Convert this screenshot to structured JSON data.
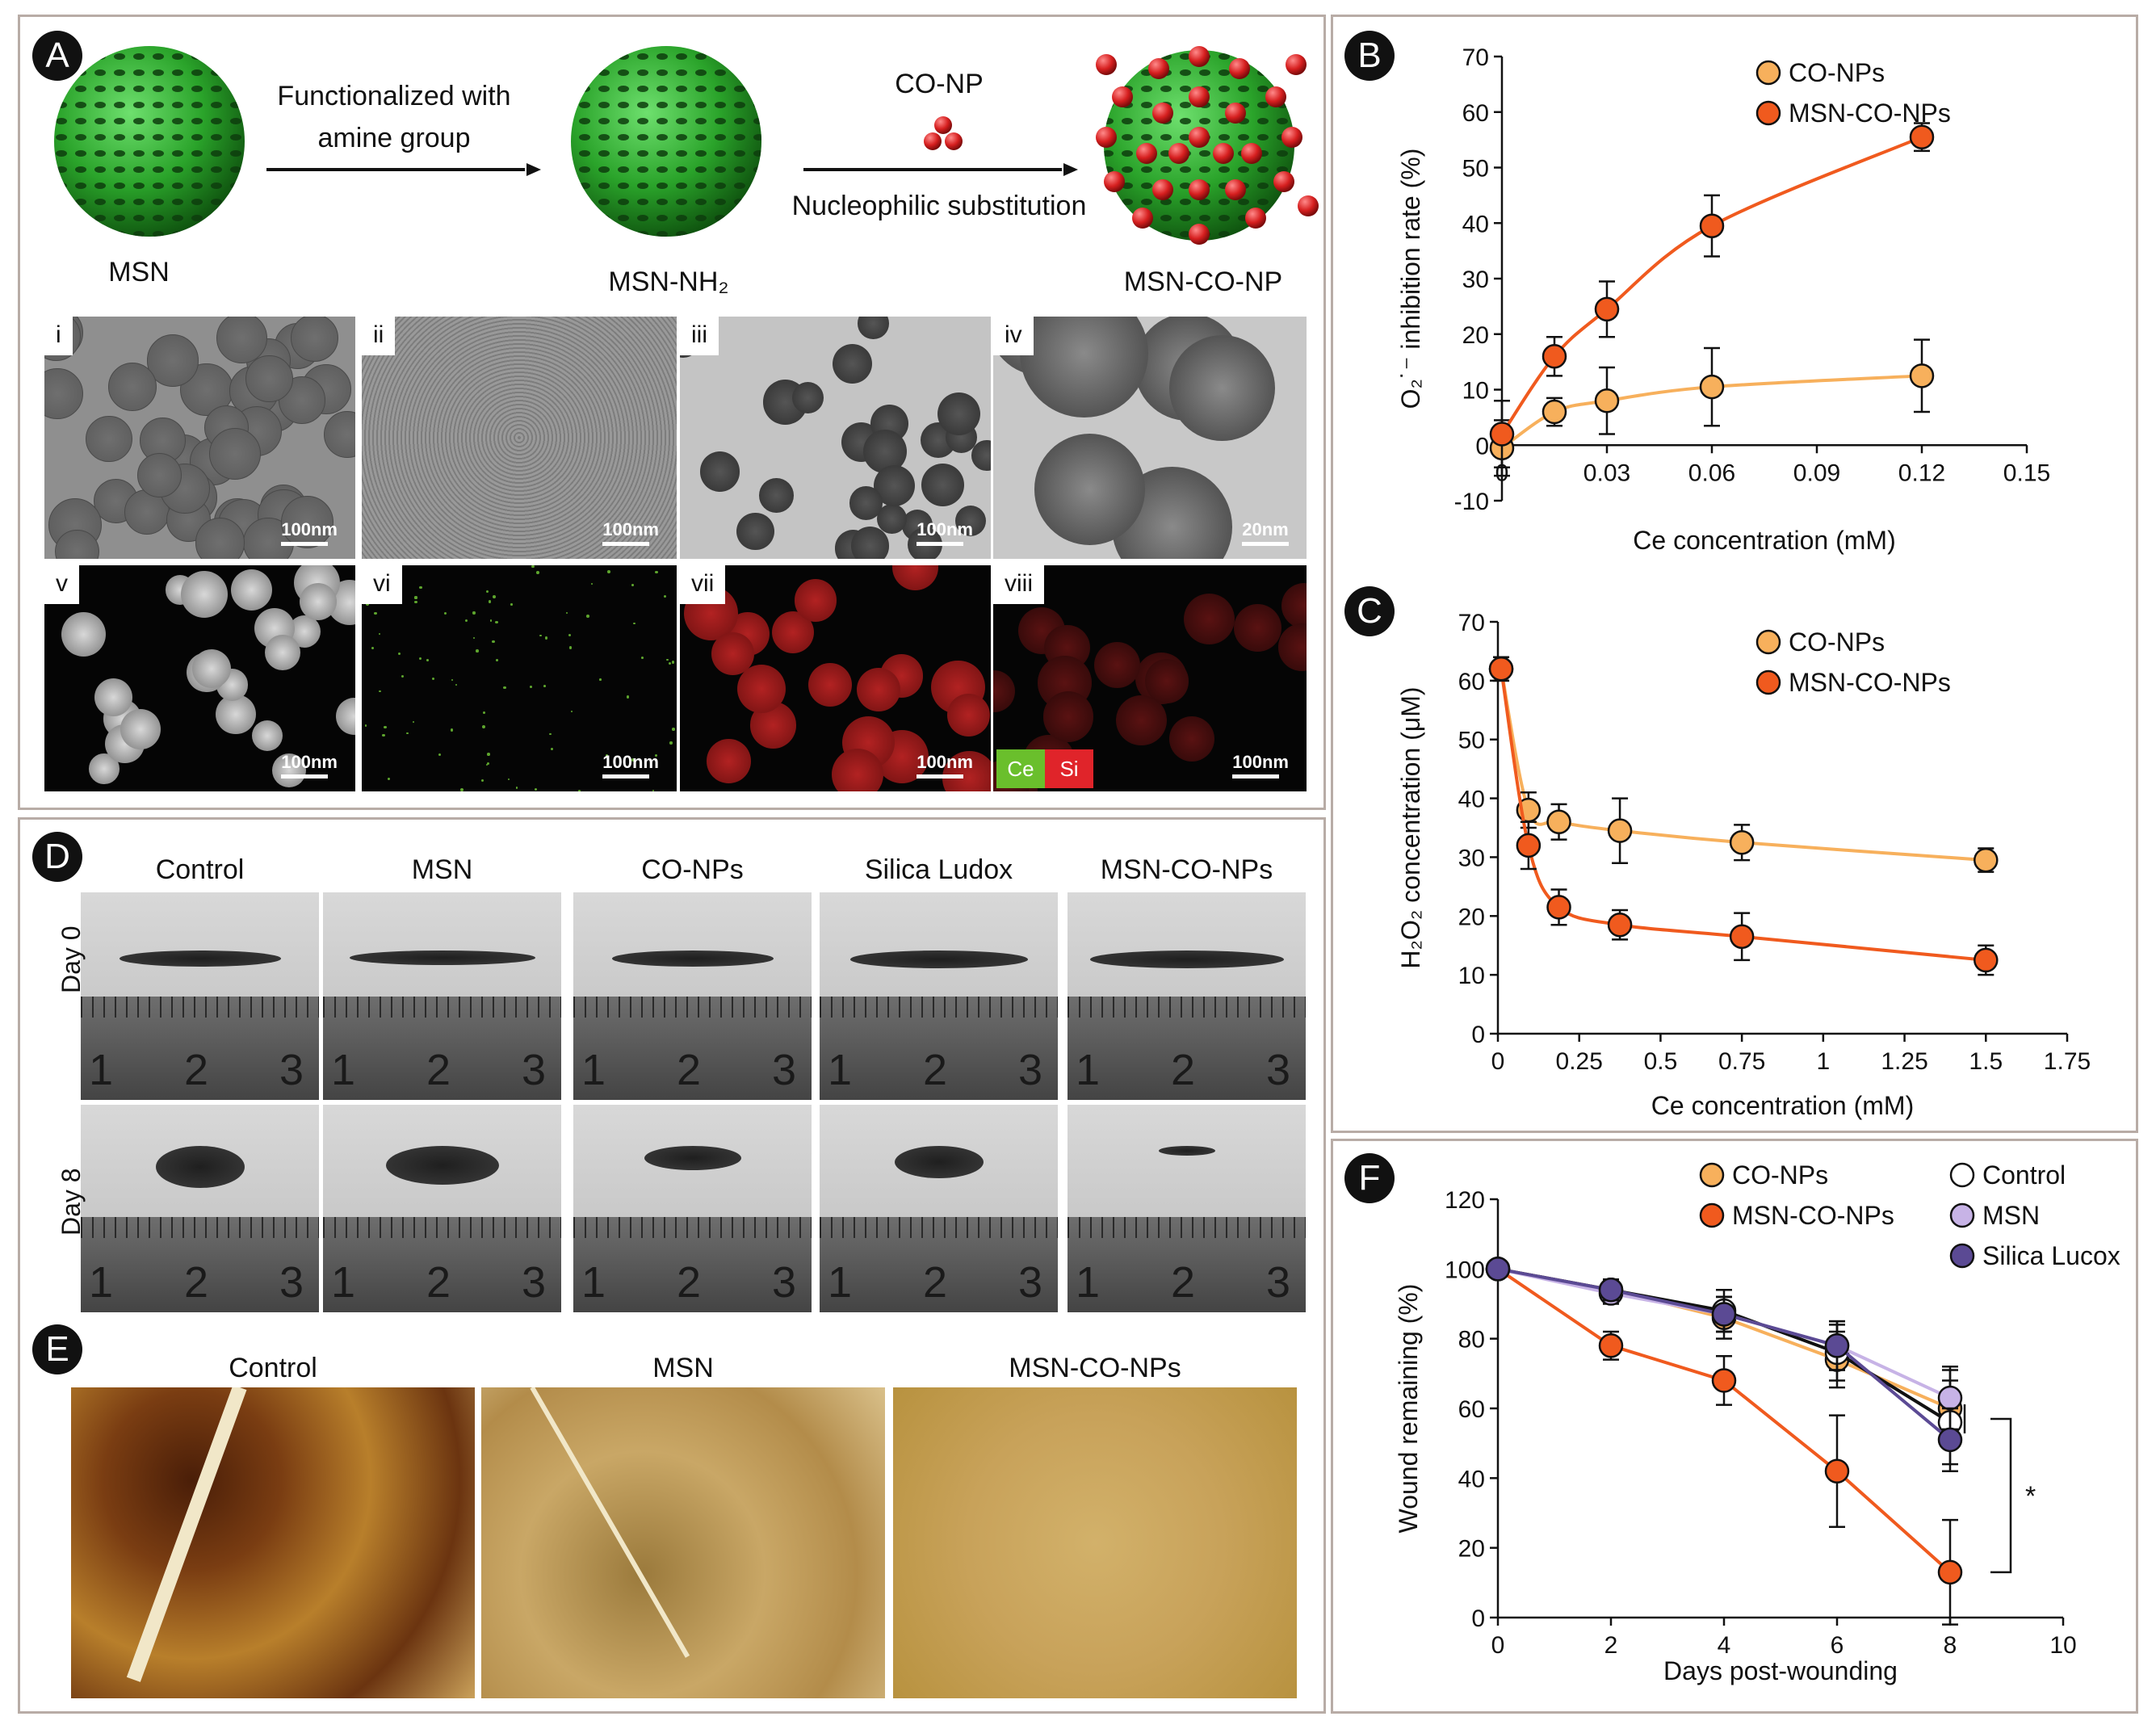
{
  "panels": {
    "A": "A",
    "B": "B",
    "C": "C",
    "D": "D",
    "E": "E",
    "F": "F"
  },
  "panel_a": {
    "arrow1_line1": "Functionalized with",
    "arrow1_line2": "amine group",
    "arrow2_top": "CO-NP",
    "arrow2_bottom": "Nucleophilic substitution",
    "label_msn": "MSN",
    "label_msn_nh2": "MSN-NH₂",
    "label_msn_co_np": "MSN-CO-NP",
    "sphere_color": "#2fae2f",
    "np_color": "#d61f1f",
    "micrographs": [
      {
        "label": "i",
        "scale": "100nm"
      },
      {
        "label": "ii",
        "scale": "100nm"
      },
      {
        "label": "iii",
        "scale": "100nm"
      },
      {
        "label": "iv",
        "scale": "20nm"
      },
      {
        "label": "v",
        "scale": "100nm"
      },
      {
        "label": "vi",
        "scale": "100nm"
      },
      {
        "label": "vii",
        "scale": "100nm"
      },
      {
        "label": "viii",
        "scale": "100nm"
      }
    ],
    "legend_ce": "Ce",
    "legend_si": "Si",
    "ce_color": "#6abf2c",
    "si_color": "#e0242a"
  },
  "panel_d": {
    "columns": [
      "Control",
      "MSN",
      "CO-NPs",
      "Silica Ludox",
      "MSN-CO-NPs"
    ],
    "rows": [
      "Day 0",
      "Day 8"
    ],
    "ruler_numbers": [
      "1",
      "2",
      "3"
    ]
  },
  "panel_e": {
    "columns": [
      "Control",
      "MSN",
      "MSN-CO-NPs"
    ]
  },
  "chart_data": [
    {
      "panel": "B",
      "type": "line",
      "xlabel": "Ce concentration (mM)",
      "ylabel": "O₂˙⁻ inhibition rate (%)",
      "xlim": [
        0,
        0.15
      ],
      "ylim": [
        -10,
        70
      ],
      "xticks": [
        "0.03",
        "0.06",
        "0.09",
        "0.12",
        "0.15"
      ],
      "xtick_values": [
        0.03,
        0.06,
        0.09,
        0.12,
        0.15
      ],
      "yticks": [
        -10,
        0,
        10,
        20,
        30,
        40,
        50,
        60,
        70
      ],
      "legend_position": "top-right",
      "series": [
        {
          "name": "CO-NPs",
          "color": "#f7b05c",
          "x": [
            0,
            0.015,
            0.03,
            0.06,
            0.12
          ],
          "y": [
            -0.5,
            6,
            8,
            10.5,
            12.5
          ],
          "err": [
            5,
            2.5,
            6,
            7,
            6.5
          ]
        },
        {
          "name": "MSN-CO-NPs",
          "color": "#f05a1e",
          "x": [
            0,
            0.015,
            0.03,
            0.06,
            0.12
          ],
          "y": [
            2,
            16,
            24.5,
            39.5,
            55.5
          ],
          "err": [
            6,
            3.5,
            5,
            5.5,
            2.5
          ]
        }
      ]
    },
    {
      "panel": "C",
      "type": "line",
      "xlabel": "Ce concentration (mM)",
      "ylabel": "H₂O₂ concentration (μM)",
      "xlim": [
        0,
        1.75
      ],
      "ylim": [
        0,
        70
      ],
      "xticks": [
        "0",
        "0.25",
        "0.5",
        "0.75",
        "1",
        "1.25",
        "1.5",
        "1.75"
      ],
      "xtick_values": [
        0,
        0.25,
        0.5,
        0.75,
        1,
        1.25,
        1.5,
        1.75
      ],
      "yticks": [
        0,
        10,
        20,
        30,
        40,
        50,
        60,
        70
      ],
      "legend_position": "top-right",
      "series": [
        {
          "name": "CO-NPs",
          "color": "#f7b05c",
          "x": [
            0.01,
            0.094,
            0.1875,
            0.375,
            0.75,
            1.5
          ],
          "y": [
            62,
            38,
            36,
            34.5,
            32.5,
            29.5
          ],
          "err": [
            2,
            3,
            3,
            5.5,
            3,
            2
          ]
        },
        {
          "name": "MSN-CO-NPs",
          "color": "#f05a1e",
          "x": [
            0.01,
            0.094,
            0.1875,
            0.375,
            0.75,
            1.5
          ],
          "y": [
            62,
            32,
            21.5,
            18.5,
            16.5,
            12.5
          ],
          "err": [
            2,
            4,
            3,
            2.5,
            4,
            2.5
          ]
        }
      ]
    },
    {
      "panel": "F",
      "type": "line",
      "xlabel": "Days post-wounding",
      "ylabel": "Wound remaining (%)",
      "xlim": [
        0,
        10
      ],
      "ylim": [
        0,
        120
      ],
      "xticks": [
        "0",
        "2",
        "4",
        "6",
        "8",
        "10"
      ],
      "xtick_values": [
        0,
        2,
        4,
        6,
        8,
        10
      ],
      "yticks": [
        0,
        20,
        40,
        60,
        80,
        100,
        120
      ],
      "legend_position": "top",
      "significance": "*",
      "series": [
        {
          "name": "CO-NPs",
          "color": "#f7b05c",
          "x": [
            0,
            2,
            4,
            6,
            8
          ],
          "y": [
            100,
            94,
            86,
            74,
            60
          ],
          "err": [
            0,
            3,
            6,
            8,
            11
          ]
        },
        {
          "name": "MSN-CO-NPs",
          "color": "#f05a1e",
          "x": [
            0,
            2,
            4,
            6,
            8
          ],
          "y": [
            100,
            78,
            68,
            42,
            13
          ],
          "err": [
            0,
            4,
            7,
            16,
            15
          ]
        },
        {
          "name": "Control",
          "color": "#ffffff",
          "x": [
            0,
            2,
            4,
            6,
            8
          ],
          "y": [
            100,
            94,
            88,
            76,
            56
          ],
          "err": [
            0,
            3,
            6,
            8,
            12
          ]
        },
        {
          "name": "MSN",
          "color": "#c7b3e6",
          "x": [
            0,
            2,
            4,
            6,
            8
          ],
          "y": [
            100,
            93,
            87,
            78,
            63
          ],
          "err": [
            0,
            3,
            5,
            7,
            9
          ]
        },
        {
          "name": "Silica Lucox",
          "color": "#5b4a94",
          "x": [
            0,
            2,
            4,
            6,
            8
          ],
          "y": [
            100,
            94,
            87,
            78,
            51
          ],
          "err": [
            0,
            3,
            5,
            7,
            9
          ]
        }
      ]
    }
  ]
}
